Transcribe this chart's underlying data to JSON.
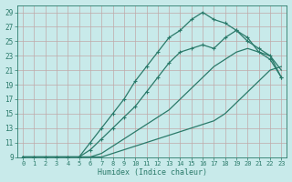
{
  "xlabel": "Humidex (Indice chaleur)",
  "xlim": [
    -0.5,
    23.5
  ],
  "ylim": [
    9,
    30
  ],
  "xticks": [
    0,
    1,
    2,
    3,
    4,
    5,
    6,
    7,
    8,
    9,
    10,
    11,
    12,
    13,
    14,
    15,
    16,
    17,
    18,
    19,
    20,
    21,
    22,
    23
  ],
  "yticks": [
    9,
    11,
    13,
    15,
    17,
    19,
    21,
    23,
    25,
    27,
    29
  ],
  "bg_color": "#c8eaea",
  "line_color": "#2a7a6a",
  "grid_color": "#b0d8d8",
  "lines": [
    {
      "x": [
        0,
        1,
        2,
        3,
        4,
        5,
        6,
        7,
        8,
        9,
        10,
        11,
        12,
        13,
        14,
        15,
        16,
        17,
        18,
        19,
        20,
        21,
        22,
        23
      ],
      "y": [
        9.0,
        9.0,
        9.0,
        9.0,
        9.0,
        9.0,
        9.0,
        9.0,
        9.5,
        10.0,
        10.5,
        11.0,
        11.5,
        12.0,
        12.5,
        13.0,
        13.5,
        14.0,
        15.0,
        16.5,
        18.0,
        19.5,
        21.0,
        21.5
      ],
      "markers": false
    },
    {
      "x": [
        0,
        1,
        2,
        3,
        4,
        5,
        6,
        7,
        8,
        9,
        10,
        11,
        12,
        13,
        14,
        15,
        16,
        17,
        18,
        19,
        20,
        21,
        22,
        23
      ],
      "y": [
        9.0,
        9.0,
        9.0,
        9.0,
        9.0,
        9.0,
        9.0,
        9.5,
        10.5,
        11.5,
        12.5,
        13.5,
        14.5,
        15.5,
        17.0,
        18.5,
        20.0,
        21.5,
        22.5,
        23.5,
        24.0,
        23.5,
        23.0,
        21.0
      ],
      "markers": false
    },
    {
      "x": [
        0,
        1,
        2,
        3,
        4,
        5,
        6,
        7,
        8,
        9,
        10,
        11,
        12,
        13,
        14,
        15,
        16,
        17,
        18,
        19,
        20,
        21,
        22,
        23
      ],
      "y": [
        9.0,
        9.0,
        9.0,
        9.0,
        9.0,
        9.0,
        10.0,
        11.5,
        13.0,
        14.5,
        16.0,
        18.0,
        20.0,
        22.0,
        23.5,
        24.0,
        24.5,
        24.0,
        25.5,
        26.5,
        25.5,
        23.5,
        22.5,
        20.0
      ],
      "markers": true
    },
    {
      "x": [
        0,
        1,
        2,
        3,
        4,
        5,
        6,
        7,
        8,
        9,
        10,
        11,
        12,
        13,
        14,
        15,
        16,
        17,
        18,
        19,
        20,
        21,
        22,
        23
      ],
      "y": [
        9.0,
        9.0,
        9.0,
        9.0,
        9.0,
        9.0,
        11.0,
        13.0,
        15.0,
        17.0,
        19.5,
        21.5,
        23.5,
        25.5,
        26.5,
        28.0,
        29.0,
        28.0,
        27.5,
        26.5,
        25.0,
        24.0,
        23.0,
        20.0
      ],
      "markers": true
    }
  ],
  "marker": "+",
  "markersize": 3.5,
  "linewidth": 0.9
}
